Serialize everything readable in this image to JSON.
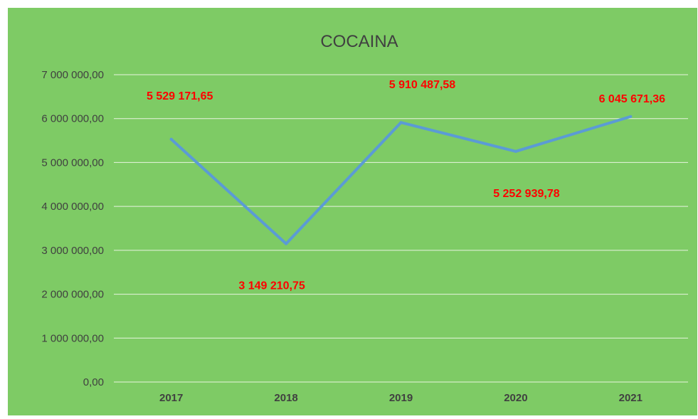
{
  "chart_data": {
    "type": "line",
    "title": "COCAINA",
    "categories": [
      "2017",
      "2018",
      "2019",
      "2020",
      "2021"
    ],
    "series": [
      {
        "values": [
          5529171.65,
          3149210.75,
          5910487.58,
          5252939.78,
          6045671.36
        ]
      }
    ],
    "data_labels": [
      "5 529 171,65",
      "3 149 210,75",
      "5 910 487,58",
      "5 252 939,78",
      "6 045 671,36"
    ],
    "y_ticks": [
      {
        "value": 0,
        "label": "0,00"
      },
      {
        "value": 1000000,
        "label": "1 000 000,00"
      },
      {
        "value": 2000000,
        "label": "2 000 000,00"
      },
      {
        "value": 3000000,
        "label": "3 000 000,00"
      },
      {
        "value": 4000000,
        "label": "4 000 000,00"
      },
      {
        "value": 5000000,
        "label": "5 000 000,00"
      },
      {
        "value": 6000000,
        "label": "6 000 000,00"
      },
      {
        "value": 7000000,
        "label": "7 000 000,00"
      }
    ],
    "ylim": [
      0,
      7000000
    ],
    "grid": true,
    "legend": "none",
    "colors": {
      "background": "#7ecb65",
      "line": "#5b9bd5",
      "gridline": "#e8f4e0",
      "data_label": "#ff0000",
      "title": "#404040",
      "axis_text": "#404040"
    }
  }
}
